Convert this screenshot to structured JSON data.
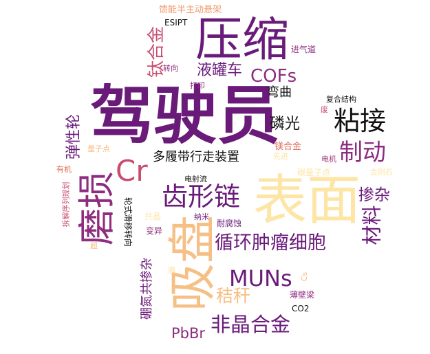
{
  "colors": {
    "dark_purple": "#6a1b7a",
    "purple": "#8e2c7f",
    "magenta": "#a43c78",
    "rose": "#c74d6e",
    "coral": "#e0705a",
    "orange": "#f19a6b",
    "peach": "#f6bf86",
    "cream": "#fde5a6",
    "black": "#111111"
  },
  "words": [
    {
      "text": "驾驶员",
      "color": "#6a1b7a"
    },
    {
      "text": "表面",
      "color": "#fde5a6"
    },
    {
      "text": "压缩",
      "color": "#6a1b7a"
    },
    {
      "text": "吸盘",
      "color": "#f6bf86"
    },
    {
      "text": "磨损",
      "color": "#8e2c7f"
    },
    {
      "text": "齿形链",
      "color": "#6a1b7a"
    },
    {
      "text": "Cr",
      "color": "#c74d6e"
    },
    {
      "text": "粘接",
      "color": "#111111"
    },
    {
      "text": "制动",
      "color": "#8e2c7f"
    },
    {
      "text": "MUNs",
      "color": "#6a1b7a"
    },
    {
      "text": "循环肿瘤细胞",
      "color": "#6a1b7a"
    },
    {
      "text": "非晶合金",
      "color": "#6a1b7a"
    },
    {
      "text": "COFs",
      "color": "#8e2c7f"
    },
    {
      "text": "液罐车",
      "color": "#6a1b7a"
    },
    {
      "text": "钛合金",
      "color": "#c74d6e"
    },
    {
      "text": "材料",
      "color": "#6a1b7a"
    },
    {
      "text": "掺杂",
      "color": "#6a1b7a"
    },
    {
      "text": "磷光",
      "color": "#111111"
    },
    {
      "text": "多履带行走装置",
      "color": "#111111"
    },
    {
      "text": "弹性轮",
      "color": "#6a1b7a"
    },
    {
      "text": "秸秆",
      "color": "#f6bf86"
    },
    {
      "text": "硼氮共掺杂",
      "color": "#6a1b7a"
    },
    {
      "text": "PbBr",
      "color": "#8e2c7f"
    },
    {
      "text": "弯曲",
      "color": "#111111"
    },
    {
      "text": "馈能半主动悬架",
      "color": "#f19a6b"
    },
    {
      "text": "ESIPT",
      "color": "#111111"
    },
    {
      "text": "进气道",
      "color": "#8e2c7f"
    },
    {
      "text": "转向",
      "color": "#8e2c7f"
    },
    {
      "text": "打印",
      "color": "#8e2c7f"
    },
    {
      "text": "复合结构",
      "color": "#111111"
    },
    {
      "text": "废",
      "color": "#c74d6e"
    },
    {
      "text": "量子点",
      "color": "#f6bf86"
    },
    {
      "text": "镁合金",
      "color": "#e0705a"
    },
    {
      "text": "先进",
      "color": "#fde5a6"
    },
    {
      "text": "电机",
      "color": "#a43c78"
    },
    {
      "text": "碳量子点",
      "color": "#fde5a6"
    },
    {
      "text": "金刚石",
      "color": "#fde5a6"
    },
    {
      "text": "有机",
      "color": "#e0705a"
    },
    {
      "text": "拆解序列规划",
      "color": "#c74d6e"
    },
    {
      "text": "轮式滑移转向",
      "color": "#111111"
    },
    {
      "text": "电射流",
      "color": "#111111"
    },
    {
      "text": "纳米",
      "color": "#6a1b7a"
    },
    {
      "text": "共晶",
      "color": "#fde5a6"
    },
    {
      "text": "耐腐蚀",
      "color": "#6a1b7a"
    },
    {
      "text": "变异",
      "color": "#8e2c7f"
    },
    {
      "text": "超",
      "color": "#f6bf86"
    },
    {
      "text": "膜",
      "color": "#fde5a6"
    },
    {
      "text": "Cs",
      "color": "#f6bf86"
    },
    {
      "text": "薄壁梁",
      "color": "#8e2c7f"
    },
    {
      "text": "CO2",
      "color": "#111111"
    }
  ]
}
